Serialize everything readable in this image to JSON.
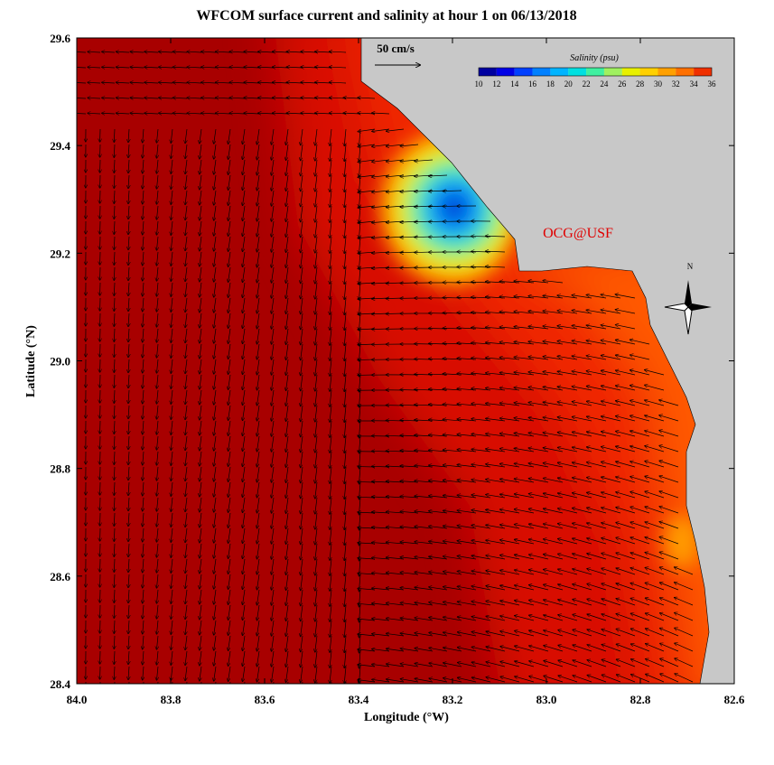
{
  "map": {
    "title": "WFCOM surface current and salinity at hour 1 on 06/13/2018",
    "xlabel": "Longitude (°W)",
    "ylabel": "Latitude (°N)",
    "xlim": [
      84.0,
      82.6
    ],
    "ylim": [
      28.4,
      29.6
    ],
    "xticks": [
      {
        "value": 84,
        "label": "84.0"
      },
      83.8,
      83.6,
      83.4,
      83.2,
      {
        "value": 83,
        "label": "83.0"
      },
      82.8,
      82.6
    ],
    "yticks": [
      28.4,
      28.6,
      28.8,
      {
        "value": 29,
        "label": "29.0"
      },
      29.2,
      29.4,
      29.6
    ],
    "scale_label": "50 cm/s",
    "credit": "OCG@USF",
    "north": "N",
    "colorbar": {
      "title": "Salinity (psu)",
      "ticks": [
        10,
        12,
        14,
        16,
        18,
        20,
        22,
        24,
        26,
        28,
        30,
        32,
        34,
        36
      ],
      "colors": [
        "#0000a0",
        "#0000e6",
        "#0040ff",
        "#0080ff",
        "#00b4ff",
        "#00e0e0",
        "#40f0a0",
        "#a0f060",
        "#e8f000",
        "#ffd000",
        "#ffa000",
        "#ff7000",
        "#f03000",
        "#b00000"
      ]
    }
  }
}
